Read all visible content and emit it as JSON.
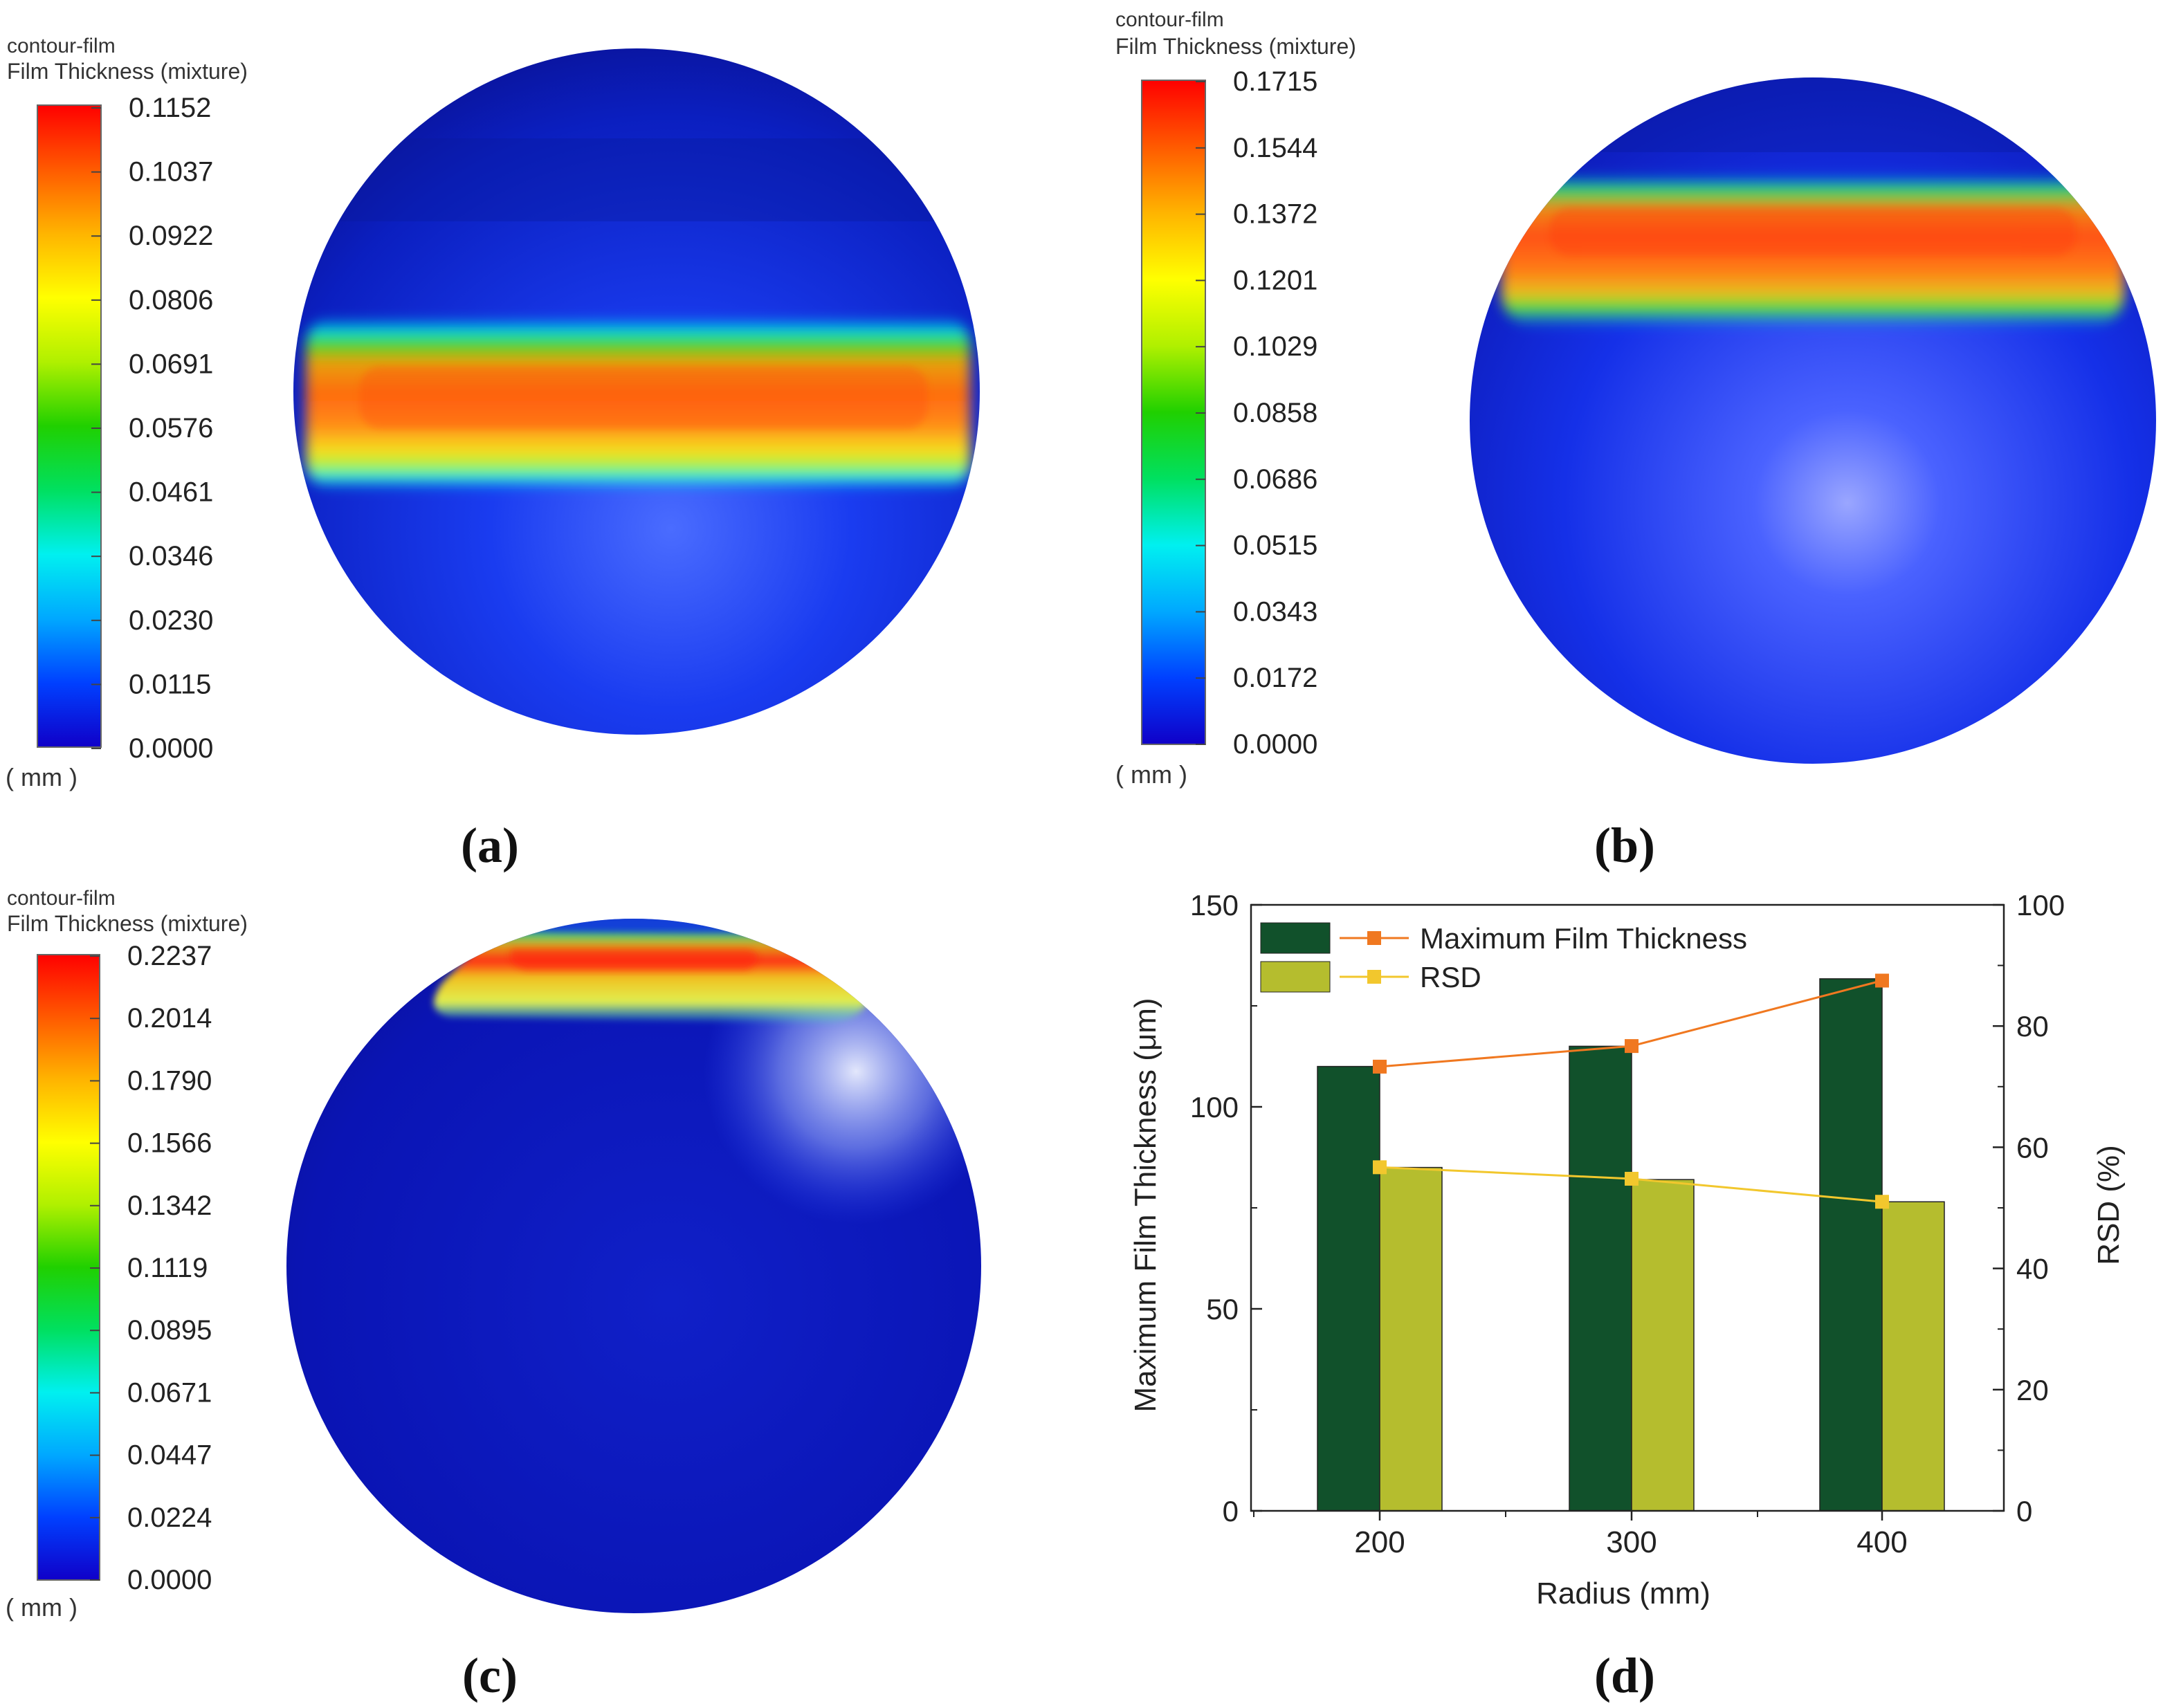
{
  "panels": [
    {
      "id": "a",
      "caption": "(a)",
      "legend_title_1": "contour-film",
      "legend_title_2": "Film Thickness (mixture)",
      "unit": "( mm )",
      "ticks": [
        "0.1152",
        "0.1037",
        "0.0922",
        "0.0806",
        "0.0691",
        "0.0576",
        "0.0461",
        "0.0346",
        "0.0230",
        "0.0115",
        "0.0000"
      ],
      "band_position": "equator",
      "band_peak_value_mm": 0.1152
    },
    {
      "id": "b",
      "caption": "(b)",
      "legend_title_1": "contour-film",
      "legend_title_2": "Film Thickness (mixture)",
      "unit": "( mm )",
      "ticks": [
        "0.1715",
        "0.1544",
        "0.1372",
        "0.1201",
        "0.1029",
        "0.0858",
        "0.0686",
        "0.0515",
        "0.0343",
        "0.0172",
        "0.0000"
      ],
      "band_position": "upper",
      "band_peak_value_mm": 0.1715
    },
    {
      "id": "c",
      "caption": "(c)",
      "legend_title_1": "contour-film",
      "legend_title_2": "Film Thickness (mixture)",
      "unit": "( mm )",
      "ticks": [
        "0.2237",
        "0.2014",
        "0.1790",
        "0.1566",
        "0.1342",
        "0.1119",
        "0.0895",
        "0.0671",
        "0.0447",
        "0.0224",
        "0.0000"
      ],
      "band_position": "top",
      "band_peak_value_mm": 0.2237
    }
  ],
  "colorscale": [
    "#1000c8",
    "#0040ff",
    "#00a8ff",
    "#00f0f0",
    "#00e060",
    "#20d000",
    "#b0f000",
    "#ffff00",
    "#ffb400",
    "#ff5a00",
    "#ff0000"
  ],
  "chart_caption": "(d)",
  "chart_data": {
    "type": "bar",
    "categories": [
      "200",
      "300",
      "400"
    ],
    "xlabel": "Radius (mm)",
    "ylabel": "Maximum Film Thickness (μm)",
    "y2label": "RSD (%)",
    "ylim": [
      0,
      150
    ],
    "y2lim": [
      0,
      100
    ],
    "yticks": [
      "0",
      "50",
      "100",
      "150"
    ],
    "y2ticks": [
      "0",
      "20",
      "40",
      "60",
      "80",
      "100"
    ],
    "series": [
      {
        "name": "Maximum Film Thickness",
        "kind": "bar",
        "axis": "left",
        "values": [
          110,
          115,
          131.7
        ],
        "color": "#11512b"
      },
      {
        "name": "RSD",
        "kind": "bar",
        "axis": "left",
        "values": [
          85,
          82,
          76.5
        ],
        "color": "#b5bd2e"
      },
      {
        "name": "Maximum Film Thickness",
        "kind": "line",
        "axis": "right",
        "values": [
          73.3,
          76.7,
          87.5
        ],
        "color": "#f07820"
      },
      {
        "name": "RSD",
        "kind": "line",
        "axis": "right",
        "values": [
          56.7,
          54.8,
          51.0
        ],
        "color": "#f2c72d"
      }
    ],
    "legend": [
      {
        "label": "Maximum Film Thickness",
        "bar_color": "#11512b",
        "line_color": "#f07820"
      },
      {
        "label": "RSD",
        "bar_color": "#b5bd2e",
        "line_color": "#f2c72d"
      }
    ],
    "legend_position": "top-left"
  }
}
